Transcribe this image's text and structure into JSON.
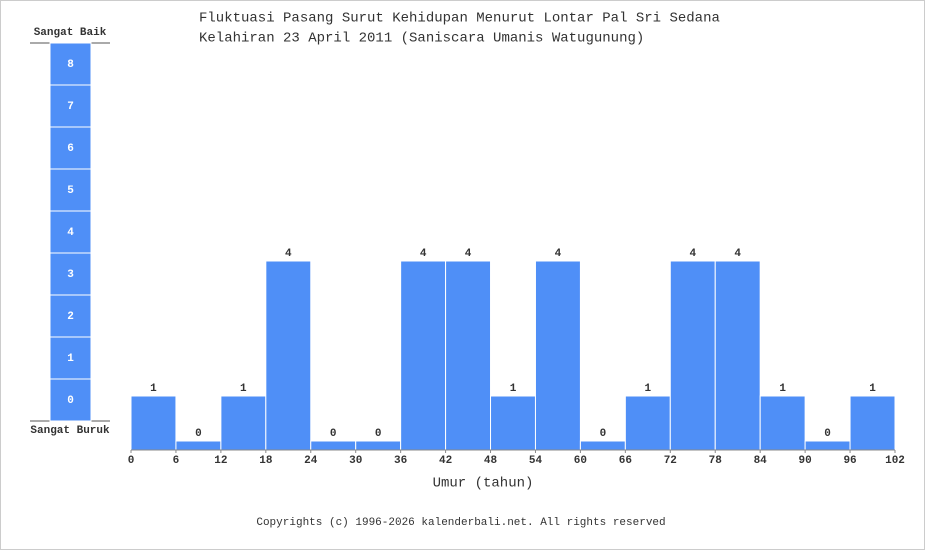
{
  "chart_data": {
    "type": "histogram",
    "title": "Fluktuasi Pasang Surut Kehidupan Menurut Lontar Pal Sri Sedana",
    "subtitle": "Kelahiran 23 April 2011 (Saniscara Umanis Watugunung)",
    "xlabel": "Umur (tahun)",
    "bins": [
      0,
      6,
      12,
      18,
      24,
      30,
      36,
      42,
      48,
      54,
      60,
      66,
      72,
      78,
      84,
      90,
      96,
      102
    ],
    "values": [
      1,
      0,
      1,
      4,
      0,
      0,
      4,
      4,
      1,
      4,
      0,
      1,
      4,
      4,
      1,
      0,
      1
    ],
    "color": "#4f8ff7",
    "xlim": [
      0,
      102
    ],
    "xticks": [
      0,
      6,
      12,
      18,
      24,
      30,
      36,
      42,
      48,
      54,
      60,
      66,
      72,
      78,
      84,
      90,
      96,
      102
    ],
    "scale": {
      "top_label": "Sangat Baik",
      "bottom_label": "Sangat Buruk",
      "levels": [
        0,
        1,
        2,
        3,
        4,
        5,
        6,
        7,
        8
      ]
    }
  },
  "footer": "Copyrights (c) 1996-2026 kalenderbali.net. All rights reserved"
}
